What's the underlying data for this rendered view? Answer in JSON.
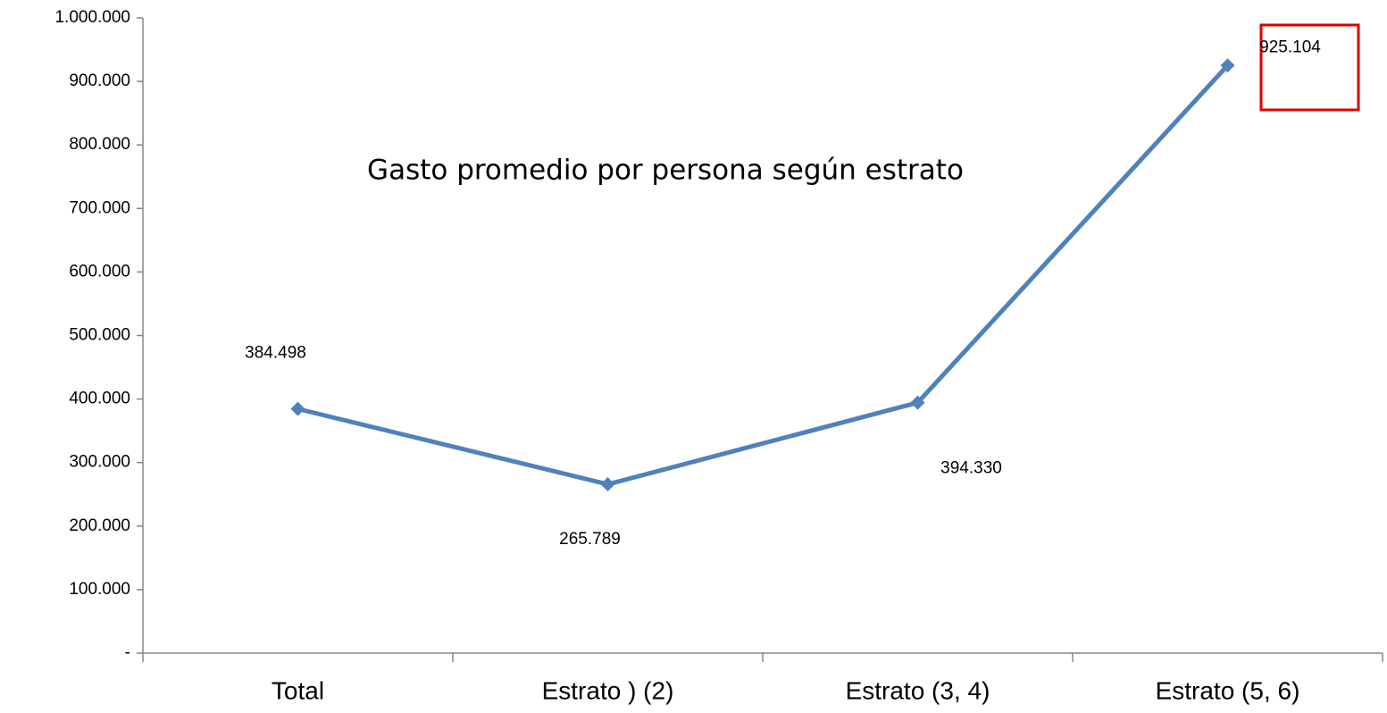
{
  "chart_data": {
    "type": "line",
    "title": "Gasto promedio por persona según estrato",
    "categories": [
      "Total",
      "Estrato ) (2)",
      "Estrato (3, 4)",
      "Estrato (5, 6)"
    ],
    "values": [
      384498,
      265789,
      394330,
      925104
    ],
    "value_labels": [
      "384.498",
      "265.789",
      "394.330",
      "925.104"
    ],
    "color": "#4f81bd",
    "ylim": [
      0,
      1000000
    ],
    "yticks": [
      {
        "value": 0,
        "label": "-"
      },
      {
        "value": 100000,
        "label": "100.000"
      },
      {
        "value": 200000,
        "label": "200.000"
      },
      {
        "value": 300000,
        "label": "300.000"
      },
      {
        "value": 400000,
        "label": "400.000"
      },
      {
        "value": 500000,
        "label": "500.000"
      },
      {
        "value": 600000,
        "label": "600.000"
      },
      {
        "value": 700000,
        "label": "700.000"
      },
      {
        "value": 800000,
        "label": "800.000"
      },
      {
        "value": 900000,
        "label": "900.000"
      },
      {
        "value": 1000000,
        "label": "1.000.000"
      }
    ],
    "grid": false
  }
}
